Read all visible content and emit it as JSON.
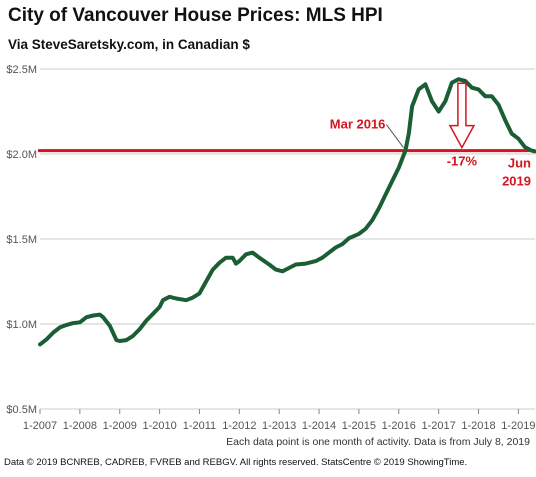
{
  "title": "City of Vancouver House Prices: MLS HPI",
  "subtitle": "Via SteveSaretsky.com, in Canadian $",
  "note": "Each data point is one month of activity. Data is from July 8, 2019",
  "credits": "Data © 2019 BCNREB, CADREB, FVREB and REBGV. All rights reserved. StatsCentre © 2019 ShowingTime.",
  "colors": {
    "line": "#1a5e35",
    "reference": "#d4151f",
    "grid": "#cccccc",
    "annotation": "#d4151f"
  },
  "chart_data": {
    "type": "line",
    "title": "City of Vancouver House Prices: MLS HPI",
    "subtitle": "Via SteveSaretsky.com, in Canadian $",
    "xlabel": "",
    "ylabel": "",
    "x_domain": [
      "2007-01",
      "2019-06"
    ],
    "y_range": [
      500000,
      2500000
    ],
    "y_ticks": [
      {
        "value": 500000,
        "label": "$0.5M"
      },
      {
        "value": 1000000,
        "label": "$1.0M"
      },
      {
        "value": 1500000,
        "label": "$1.5M"
      },
      {
        "value": 2000000,
        "label": "$2.0M"
      },
      {
        "value": 2500000,
        "label": "$2.5M"
      }
    ],
    "x_ticks": [
      {
        "date": "2007-01",
        "label": "1-2007"
      },
      {
        "date": "2008-01",
        "label": "1-2008"
      },
      {
        "date": "2009-01",
        "label": "1-2009"
      },
      {
        "date": "2010-01",
        "label": "1-2010"
      },
      {
        "date": "2011-01",
        "label": "1-2011"
      },
      {
        "date": "2012-01",
        "label": "1-2012"
      },
      {
        "date": "2013-01",
        "label": "1-2013"
      },
      {
        "date": "2014-01",
        "label": "1-2014"
      },
      {
        "date": "2015-01",
        "label": "1-2015"
      },
      {
        "date": "2016-01",
        "label": "1-2016"
      },
      {
        "date": "2017-01",
        "label": "1-2017"
      },
      {
        "date": "2018-01",
        "label": "1-2018"
      },
      {
        "date": "2019-01",
        "label": "1-2019"
      }
    ],
    "grid": "horizontal",
    "reference_line": {
      "value": 2020000,
      "from": "2007-01",
      "to": "2019-06"
    },
    "annotations": [
      {
        "text": "Mar 2016",
        "anchor_date": "2016-03",
        "anchor_value": 2020000
      },
      {
        "text": "-17%",
        "anchor_date": "2017-08",
        "anchor_value": 2020000
      },
      {
        "text": "Jun",
        "anchor_date": "2019-06"
      },
      {
        "text": "2019",
        "anchor_date": "2019-06"
      }
    ],
    "drop_arrow": {
      "date": "2017-08",
      "from_value": 2440000,
      "to_value": 2020000
    },
    "series": [
      {
        "points": [
          [
            "2007-01",
            880000
          ],
          [
            "2007-03",
            910000
          ],
          [
            "2007-05",
            950000
          ],
          [
            "2007-07",
            980000
          ],
          [
            "2007-09",
            995000
          ],
          [
            "2007-11",
            1005000
          ],
          [
            "2008-01",
            1010000
          ],
          [
            "2008-03",
            1040000
          ],
          [
            "2008-05",
            1050000
          ],
          [
            "2008-07",
            1055000
          ],
          [
            "2008-08",
            1040000
          ],
          [
            "2008-10",
            990000
          ],
          [
            "2008-12",
            905000
          ],
          [
            "2009-01",
            900000
          ],
          [
            "2009-03",
            905000
          ],
          [
            "2009-05",
            930000
          ],
          [
            "2009-07",
            970000
          ],
          [
            "2009-09",
            1020000
          ],
          [
            "2009-11",
            1060000
          ],
          [
            "2010-01",
            1100000
          ],
          [
            "2010-02",
            1140000
          ],
          [
            "2010-04",
            1160000
          ],
          [
            "2010-06",
            1150000
          ],
          [
            "2010-09",
            1140000
          ],
          [
            "2010-11",
            1155000
          ],
          [
            "2011-01",
            1180000
          ],
          [
            "2011-03",
            1250000
          ],
          [
            "2011-05",
            1320000
          ],
          [
            "2011-07",
            1360000
          ],
          [
            "2011-09",
            1390000
          ],
          [
            "2011-11",
            1390000
          ],
          [
            "2011-12",
            1355000
          ],
          [
            "2012-01",
            1370000
          ],
          [
            "2012-03",
            1410000
          ],
          [
            "2012-05",
            1420000
          ],
          [
            "2012-07",
            1390000
          ],
          [
            "2012-10",
            1350000
          ],
          [
            "2012-12",
            1320000
          ],
          [
            "2013-02",
            1310000
          ],
          [
            "2013-04",
            1330000
          ],
          [
            "2013-06",
            1350000
          ],
          [
            "2013-09",
            1355000
          ],
          [
            "2013-12",
            1370000
          ],
          [
            "2014-02",
            1390000
          ],
          [
            "2014-04",
            1420000
          ],
          [
            "2014-06",
            1450000
          ],
          [
            "2014-08",
            1470000
          ],
          [
            "2014-10",
            1505000
          ],
          [
            "2015-01",
            1530000
          ],
          [
            "2015-03",
            1560000
          ],
          [
            "2015-05",
            1610000
          ],
          [
            "2015-07",
            1680000
          ],
          [
            "2015-09",
            1760000
          ],
          [
            "2015-11",
            1840000
          ],
          [
            "2016-01",
            1920000
          ],
          [
            "2016-03",
            2020000
          ],
          [
            "2016-04",
            2120000
          ],
          [
            "2016-05",
            2280000
          ],
          [
            "2016-07",
            2380000
          ],
          [
            "2016-09",
            2410000
          ],
          [
            "2016-11",
            2310000
          ],
          [
            "2017-01",
            2250000
          ],
          [
            "2017-03",
            2310000
          ],
          [
            "2017-05",
            2420000
          ],
          [
            "2017-07",
            2440000
          ],
          [
            "2017-09",
            2430000
          ],
          [
            "2017-11",
            2390000
          ],
          [
            "2018-01",
            2380000
          ],
          [
            "2018-03",
            2340000
          ],
          [
            "2018-05",
            2340000
          ],
          [
            "2018-07",
            2290000
          ],
          [
            "2018-09",
            2200000
          ],
          [
            "2018-11",
            2120000
          ],
          [
            "2019-01",
            2090000
          ],
          [
            "2019-03",
            2040000
          ],
          [
            "2019-05",
            2020000
          ],
          [
            "2019-06",
            2015000
          ]
        ]
      }
    ]
  }
}
